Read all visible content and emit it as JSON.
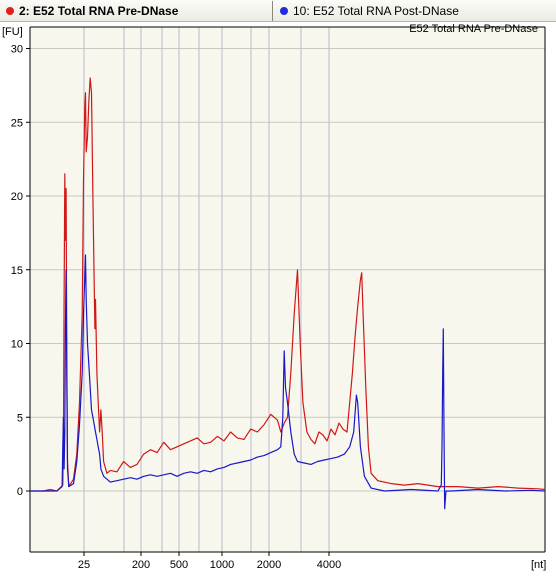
{
  "tabs": [
    {
      "label": "2: E52 Total RNA Pre-DNase",
      "dot_color": "#e0201c",
      "active": true
    },
    {
      "label": "10: E52 Total RNA Post-DNase",
      "dot_color": "#1e2fe0",
      "active": false
    }
  ],
  "chart_data": {
    "type": "line",
    "title": "E52 Total RNA Pre-DNase",
    "ylabel": "[FU]",
    "xlabel": "[nt]",
    "ylim": [
      -4,
      31
    ],
    "yticks": [
      0,
      5,
      10,
      15,
      20,
      25,
      30
    ],
    "xticks": [
      "25",
      "200",
      "500",
      "1000",
      "2000",
      "4000"
    ],
    "grid": true,
    "background": "#f7f7ee",
    "series": [
      {
        "name": "E52 Total RNA Pre-DNase",
        "color": "#d01818",
        "points": [
          [
            30,
            0
          ],
          [
            50,
            0
          ],
          [
            60,
            0.1
          ],
          [
            70,
            0
          ],
          [
            79,
            0.4
          ],
          [
            80,
            3
          ],
          [
            81,
            13
          ],
          [
            82,
            21.5
          ],
          [
            83,
            17
          ],
          [
            84,
            20.5
          ],
          [
            85,
            9
          ],
          [
            86,
            2
          ],
          [
            88,
            0.3
          ],
          [
            95,
            0.8
          ],
          [
            100,
            2.5
          ],
          [
            104,
            6
          ],
          [
            108,
            12
          ],
          [
            110,
            21
          ],
          [
            112,
            26
          ],
          [
            113,
            27
          ],
          [
            114,
            23
          ],
          [
            116,
            24
          ],
          [
            118,
            26.5
          ],
          [
            120,
            28
          ],
          [
            122,
            27
          ],
          [
            124,
            20
          ],
          [
            126,
            14
          ],
          [
            127,
            11
          ],
          [
            128,
            13
          ],
          [
            130,
            8
          ],
          [
            132,
            6
          ],
          [
            134,
            4
          ],
          [
            136,
            5.5
          ],
          [
            138,
            4
          ],
          [
            140,
            2
          ],
          [
            145,
            1.2
          ],
          [
            150,
            1.4
          ],
          [
            160,
            1.3
          ],
          [
            170,
            2
          ],
          [
            180,
            1.6
          ],
          [
            190,
            1.8
          ],
          [
            200,
            2.5
          ],
          [
            210,
            2.8
          ],
          [
            220,
            2.6
          ],
          [
            230,
            3.3
          ],
          [
            240,
            2.8
          ],
          [
            250,
            3
          ],
          [
            260,
            3.2
          ],
          [
            270,
            3.4
          ],
          [
            280,
            3.6
          ],
          [
            290,
            3.2
          ],
          [
            300,
            3.3
          ],
          [
            310,
            3.7
          ],
          [
            320,
            3.4
          ],
          [
            330,
            4
          ],
          [
            340,
            3.6
          ],
          [
            350,
            3.5
          ],
          [
            360,
            4.2
          ],
          [
            370,
            4
          ],
          [
            380,
            4.5
          ],
          [
            390,
            5.2
          ],
          [
            400,
            4.8
          ],
          [
            405,
            4
          ],
          [
            410,
            4.6
          ],
          [
            415,
            5
          ],
          [
            420,
            8
          ],
          [
            425,
            12
          ],
          [
            430,
            15
          ],
          [
            434,
            10
          ],
          [
            438,
            6
          ],
          [
            444,
            4
          ],
          [
            450,
            3.5
          ],
          [
            456,
            3.2
          ],
          [
            462,
            4
          ],
          [
            468,
            3.8
          ],
          [
            474,
            3.4
          ],
          [
            480,
            4.2
          ],
          [
            486,
            3.8
          ],
          [
            492,
            4.6
          ],
          [
            498,
            4.2
          ],
          [
            504,
            4
          ],
          [
            508,
            6
          ],
          [
            512,
            8
          ],
          [
            516,
            10.5
          ],
          [
            520,
            12.5
          ],
          [
            524,
            14.3
          ],
          [
            526,
            14.8
          ],
          [
            528,
            12
          ],
          [
            532,
            7
          ],
          [
            536,
            3
          ],
          [
            540,
            1.2
          ],
          [
            550,
            0.7
          ],
          [
            570,
            0.5
          ],
          [
            590,
            0.4
          ],
          [
            610,
            0.5
          ],
          [
            640,
            0.3
          ],
          [
            670,
            0.3
          ],
          [
            700,
            0.2
          ],
          [
            730,
            0.3
          ],
          [
            760,
            0.2
          ],
          [
            790,
            0.15
          ],
          [
            800,
            0.1
          ]
        ]
      },
      {
        "name": "E52 Total RNA Post-DNase",
        "color": "#1818c8",
        "points": [
          [
            30,
            0
          ],
          [
            60,
            0
          ],
          [
            70,
            0
          ],
          [
            78,
            0.3
          ],
          [
            79,
            3
          ],
          [
            80,
            5
          ],
          [
            81,
            1.5
          ],
          [
            82,
            4
          ],
          [
            83,
            11
          ],
          [
            84,
            15
          ],
          [
            85,
            8
          ],
          [
            86,
            1.5
          ],
          [
            88,
            0.3
          ],
          [
            95,
            0.5
          ],
          [
            100,
            2
          ],
          [
            104,
            4.5
          ],
          [
            108,
            8
          ],
          [
            110,
            12
          ],
          [
            112,
            14.5
          ],
          [
            113,
            16
          ],
          [
            114,
            13
          ],
          [
            116,
            10
          ],
          [
            118,
            8.5
          ],
          [
            120,
            7
          ],
          [
            122,
            5.5
          ],
          [
            124,
            5
          ],
          [
            126,
            4.5
          ],
          [
            128,
            4
          ],
          [
            130,
            3.5
          ],
          [
            132,
            3
          ],
          [
            134,
            2.5
          ],
          [
            136,
            1.5
          ],
          [
            140,
            1
          ],
          [
            150,
            0.6
          ],
          [
            160,
            0.7
          ],
          [
            170,
            0.8
          ],
          [
            180,
            0.9
          ],
          [
            190,
            0.8
          ],
          [
            200,
            1
          ],
          [
            210,
            1.1
          ],
          [
            220,
            1
          ],
          [
            230,
            1.1
          ],
          [
            240,
            1.2
          ],
          [
            250,
            1
          ],
          [
            260,
            1.2
          ],
          [
            270,
            1.3
          ],
          [
            280,
            1.2
          ],
          [
            290,
            1.4
          ],
          [
            300,
            1.3
          ],
          [
            310,
            1.5
          ],
          [
            320,
            1.6
          ],
          [
            330,
            1.8
          ],
          [
            340,
            1.9
          ],
          [
            350,
            2
          ],
          [
            360,
            2.1
          ],
          [
            370,
            2.3
          ],
          [
            380,
            2.4
          ],
          [
            390,
            2.6
          ],
          [
            400,
            2.8
          ],
          [
            405,
            3
          ],
          [
            408,
            5
          ],
          [
            410,
            9.5
          ],
          [
            412,
            7
          ],
          [
            415,
            6
          ],
          [
            420,
            4
          ],
          [
            425,
            2.5
          ],
          [
            430,
            2
          ],
          [
            440,
            1.9
          ],
          [
            450,
            1.8
          ],
          [
            460,
            2
          ],
          [
            470,
            2.1
          ],
          [
            480,
            2.2
          ],
          [
            490,
            2.3
          ],
          [
            500,
            2.5
          ],
          [
            508,
            3
          ],
          [
            514,
            4
          ],
          [
            518,
            6.5
          ],
          [
            520,
            6
          ],
          [
            524,
            3
          ],
          [
            530,
            1
          ],
          [
            540,
            0.2
          ],
          [
            560,
            0
          ],
          [
            600,
            0.1
          ],
          [
            640,
            0
          ],
          [
            645,
            0.4
          ],
          [
            646,
            3
          ],
          [
            647,
            8
          ],
          [
            648,
            11
          ],
          [
            649,
            4
          ],
          [
            650,
            -1.2
          ],
          [
            651,
            -0.6
          ],
          [
            652,
            0
          ],
          [
            660,
            0
          ],
          [
            700,
            0.1
          ],
          [
            740,
            0
          ],
          [
            780,
            0.05
          ],
          [
            800,
            0
          ]
        ]
      }
    ]
  }
}
